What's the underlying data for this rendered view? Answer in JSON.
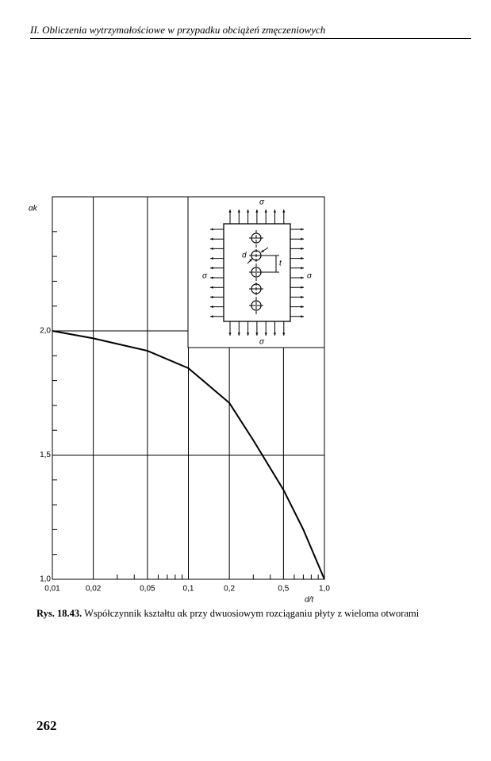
{
  "header": {
    "title": "II. Obliczenia wytrzymałościowe w przypadku obciążeń zmęczeniowych"
  },
  "chart_data": {
    "type": "line",
    "y_label": "αk",
    "x_label": "d/t",
    "x": [
      0.01,
      0.02,
      0.05,
      0.1,
      0.2,
      0.3,
      0.5,
      0.7,
      1.0
    ],
    "values": [
      2.0,
      1.97,
      1.92,
      1.85,
      1.71,
      1.56,
      1.36,
      1.2,
      1.0
    ],
    "color": "#000000",
    "xscale": "log",
    "xlim": [
      0.01,
      1.0
    ],
    "xticks": [
      {
        "value": 0.01,
        "label": "0,01"
      },
      {
        "value": 0.02,
        "label": "0,02"
      },
      {
        "value": 0.05,
        "label": "0,05"
      },
      {
        "value": 0.1,
        "label": "0,1"
      },
      {
        "value": 0.2,
        "label": "0,2"
      },
      {
        "value": 0.5,
        "label": "0,5"
      },
      {
        "value": 1.0,
        "label": "1,0"
      }
    ],
    "xminorticks": [
      0.03,
      0.04,
      0.06,
      0.07,
      0.08,
      0.09,
      0.3,
      0.4,
      0.6,
      0.7,
      0.8,
      0.9
    ],
    "ylim": [
      1.0,
      2.54
    ],
    "yticks": [
      {
        "value": 1.0,
        "label": "1,0"
      },
      {
        "value": 1.5,
        "label": "1,5"
      },
      {
        "value": 2.0,
        "label": "2,0"
      }
    ],
    "yminorticks": [
      1.1,
      1.2,
      1.3,
      1.4,
      1.6,
      1.7,
      1.8,
      1.9,
      2.1,
      2.2,
      2.3,
      2.4
    ],
    "grid": true,
    "inset": {
      "sigma_top": "σ",
      "sigma_left": "σ",
      "sigma_right": "σ",
      "sigma_bottom": "σ",
      "d": "d",
      "t": "t"
    }
  },
  "caption": {
    "label": "Rys. 18.43.",
    "text": "Współczynnik kształtu αk przy dwuosiowym rozciąganiu płyty z wieloma otworami"
  },
  "page_number": "262"
}
